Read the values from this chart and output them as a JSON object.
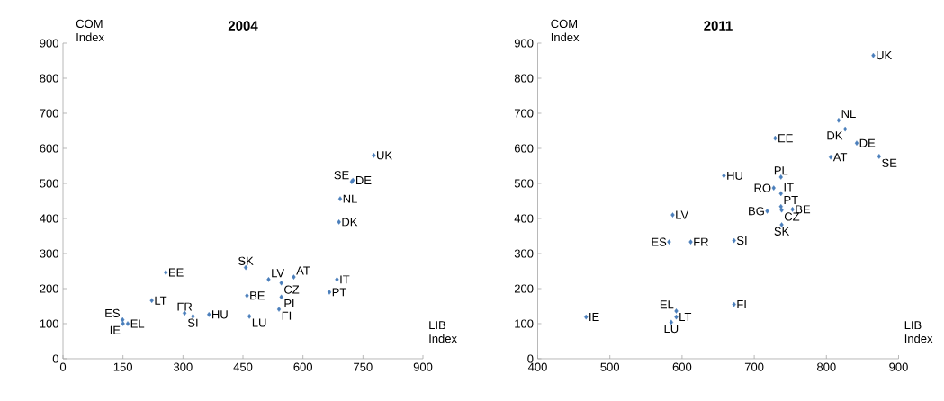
{
  "chart_data": [
    {
      "type": "scatter",
      "title": "2004",
      "xlabel": "LIB Index",
      "ylabel": "COM Index",
      "marker": "diamond",
      "xlim": [
        0,
        900
      ],
      "ylim": [
        0,
        900
      ],
      "xticks": [
        0,
        150,
        300,
        450,
        600,
        750,
        900
      ],
      "yticks": [
        0,
        100,
        200,
        300,
        400,
        500,
        600,
        700,
        800,
        900
      ],
      "series": [
        {
          "name": "ES",
          "color": "#4a7ebb",
          "x": [
            149
          ],
          "values": [
            111
          ]
        },
        {
          "name": "IE",
          "color": "#4a7ebb",
          "x": [
            150
          ],
          "values": [
            100
          ]
        },
        {
          "name": "EL",
          "color": "#4a7ebb",
          "x": [
            162
          ],
          "values": [
            100
          ]
        },
        {
          "name": "LT",
          "color": "#4a7ebb",
          "x": [
            222
          ],
          "values": [
            166
          ]
        },
        {
          "name": "EE",
          "color": "#4a7ebb",
          "x": [
            257
          ],
          "values": [
            246
          ]
        },
        {
          "name": "FR",
          "color": "#4a7ebb",
          "x": [
            304
          ],
          "values": [
            130
          ]
        },
        {
          "name": "SI",
          "color": "#4a7ebb",
          "x": [
            325
          ],
          "values": [
            121
          ]
        },
        {
          "name": "HU",
          "color": "#4a7ebb",
          "x": [
            365
          ],
          "values": [
            126
          ]
        },
        {
          "name": "SK",
          "color": "#4a7ebb",
          "x": [
            457
          ],
          "values": [
            260
          ]
        },
        {
          "name": "BE",
          "color": "#4a7ebb",
          "x": [
            460
          ],
          "values": [
            180
          ]
        },
        {
          "name": "LU",
          "color": "#4a7ebb",
          "x": [
            466
          ],
          "values": [
            121
          ]
        },
        {
          "name": "LV",
          "color": "#4a7ebb",
          "x": [
            514
          ],
          "values": [
            226
          ]
        },
        {
          "name": "AT",
          "color": "#4a7ebb",
          "x": [
            577
          ],
          "values": [
            233
          ]
        },
        {
          "name": "CZ",
          "color": "#4a7ebb",
          "x": [
            546
          ],
          "values": [
            216
          ]
        },
        {
          "name": "PL",
          "color": "#4a7ebb",
          "x": [
            546
          ],
          "values": [
            176
          ]
        },
        {
          "name": "FI",
          "color": "#4a7ebb",
          "x": [
            540
          ],
          "values": [
            141
          ]
        },
        {
          "name": "IT",
          "color": "#4a7ebb",
          "x": [
            685
          ],
          "values": [
            226
          ]
        },
        {
          "name": "PT",
          "color": "#4a7ebb",
          "x": [
            666
          ],
          "values": [
            190
          ]
        },
        {
          "name": "DK",
          "color": "#4a7ebb",
          "x": [
            690
          ],
          "values": [
            390
          ]
        },
        {
          "name": "NL",
          "color": "#4a7ebb",
          "x": [
            693
          ],
          "values": [
            456
          ]
        },
        {
          "name": "SE",
          "color": "#4a7ebb",
          "x": [
            722
          ],
          "values": [
            505
          ]
        },
        {
          "name": "DE",
          "color": "#4a7ebb",
          "x": [
            725
          ],
          "values": [
            509
          ]
        },
        {
          "name": "UK",
          "color": "#4a7ebb",
          "x": [
            777
          ],
          "values": [
            580
          ]
        }
      ]
    },
    {
      "type": "scatter",
      "title": "2011",
      "xlabel": "LIB Index",
      "ylabel": "COM Index",
      "marker": "diamond",
      "xlim": [
        400,
        900
      ],
      "ylim": [
        0,
        900
      ],
      "xticks": [
        400,
        500,
        600,
        700,
        800,
        900
      ],
      "yticks": [
        0,
        100,
        200,
        300,
        400,
        500,
        600,
        700,
        800,
        900
      ],
      "series": [
        {
          "name": "IE",
          "color": "#4a7ebb",
          "x": [
            467
          ],
          "values": [
            119
          ]
        },
        {
          "name": "LU",
          "color": "#4a7ebb",
          "x": [
            585
          ],
          "values": [
            104
          ]
        },
        {
          "name": "LT",
          "color": "#4a7ebb",
          "x": [
            592
          ],
          "values": [
            119
          ]
        },
        {
          "name": "EL",
          "color": "#4a7ebb",
          "x": [
            592
          ],
          "values": [
            136
          ]
        },
        {
          "name": "ES",
          "color": "#4a7ebb",
          "x": [
            582
          ],
          "values": [
            333
          ]
        },
        {
          "name": "LV",
          "color": "#4a7ebb",
          "x": [
            587
          ],
          "values": [
            410
          ]
        },
        {
          "name": "FR",
          "color": "#4a7ebb",
          "x": [
            612
          ],
          "values": [
            333
          ]
        },
        {
          "name": "SI",
          "color": "#4a7ebb",
          "x": [
            672
          ],
          "values": [
            337
          ]
        },
        {
          "name": "FI",
          "color": "#4a7ebb",
          "x": [
            672
          ],
          "values": [
            155
          ]
        },
        {
          "name": "HU",
          "color": "#4a7ebb",
          "x": [
            658
          ],
          "values": [
            522
          ]
        },
        {
          "name": "BG",
          "color": "#4a7ebb",
          "x": [
            718
          ],
          "values": [
            421
          ]
        },
        {
          "name": "RO",
          "color": "#4a7ebb",
          "x": [
            727
          ],
          "values": [
            487
          ]
        },
        {
          "name": "PL",
          "color": "#4a7ebb",
          "x": [
            737
          ],
          "values": [
            518
          ]
        },
        {
          "name": "IT",
          "color": "#4a7ebb",
          "x": [
            737
          ],
          "values": [
            471
          ]
        },
        {
          "name": "PT",
          "color": "#4a7ebb",
          "x": [
            737
          ],
          "values": [
            434
          ]
        },
        {
          "name": "CZ",
          "color": "#4a7ebb",
          "x": [
            738
          ],
          "values": [
            424
          ]
        },
        {
          "name": "SK",
          "color": "#4a7ebb",
          "x": [
            738
          ],
          "values": [
            382
          ]
        },
        {
          "name": "BE",
          "color": "#4a7ebb",
          "x": [
            753
          ],
          "values": [
            426
          ]
        },
        {
          "name": "EE",
          "color": "#4a7ebb",
          "x": [
            729
          ],
          "values": [
            629
          ]
        },
        {
          "name": "AT",
          "color": "#4a7ebb",
          "x": [
            806
          ],
          "values": [
            575
          ]
        },
        {
          "name": "DE",
          "color": "#4a7ebb",
          "x": [
            842
          ],
          "values": [
            615
          ]
        },
        {
          "name": "DK",
          "color": "#4a7ebb",
          "x": [
            826
          ],
          "values": [
            655
          ]
        },
        {
          "name": "NL",
          "color": "#4a7ebb",
          "x": [
            817
          ],
          "values": [
            680
          ]
        },
        {
          "name": "SE",
          "color": "#4a7ebb",
          "x": [
            873
          ],
          "values": [
            577
          ]
        },
        {
          "name": "UK",
          "color": "#4a7ebb",
          "x": [
            865
          ],
          "values": [
            865
          ]
        }
      ]
    }
  ]
}
